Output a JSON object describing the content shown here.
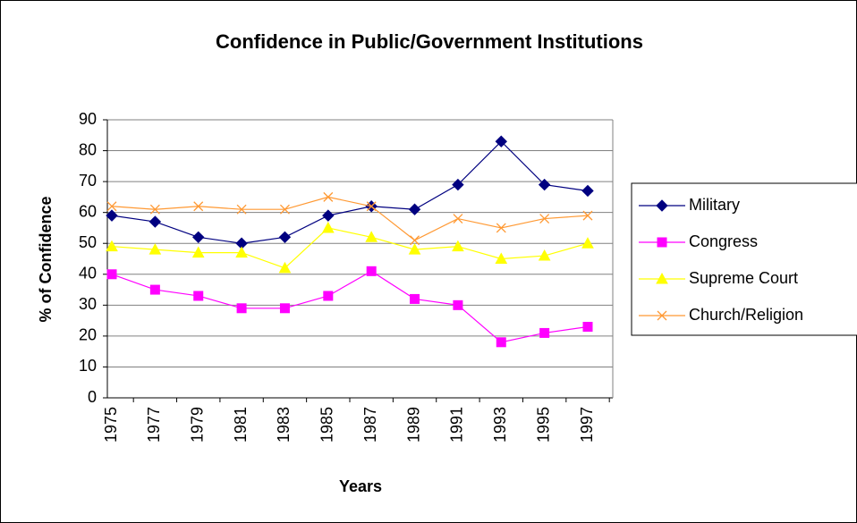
{
  "chart_data": {
    "type": "line",
    "title": "Confidence in Public/Government Institutions",
    "x_label": "Years",
    "y_label": "% of Confidence",
    "categories": [
      "1975",
      "1977",
      "1979",
      "1981",
      "1983",
      "1985",
      "1987",
      "1989",
      "1991",
      "1993",
      "1995",
      "1997"
    ],
    "series": [
      {
        "name": "Military",
        "color": "#000080",
        "marker": "diamond",
        "values": [
          59,
          57,
          52,
          50,
          52,
          59,
          62,
          61,
          69,
          83,
          69,
          67
        ]
      },
      {
        "name": "Congress",
        "color": "#ff00ff",
        "marker": "square",
        "values": [
          40,
          35,
          33,
          29,
          29,
          33,
          41,
          32,
          30,
          18,
          21,
          23
        ]
      },
      {
        "name": "Supreme Court",
        "color": "#ffff00",
        "marker": "triangle",
        "values": [
          49,
          48,
          47,
          47,
          42,
          55,
          52,
          48,
          49,
          45,
          46,
          50
        ]
      },
      {
        "name": "Church/Religion",
        "color": "#ff9933",
        "marker": "x",
        "values": [
          62,
          61,
          62,
          61,
          61,
          65,
          62,
          51,
          58,
          55,
          58,
          59
        ]
      }
    ],
    "ylim": [
      0,
      90
    ],
    "yticks": [
      0,
      10,
      20,
      30,
      40,
      50,
      60,
      70,
      80,
      90
    ],
    "grid": true,
    "legend": "right"
  }
}
